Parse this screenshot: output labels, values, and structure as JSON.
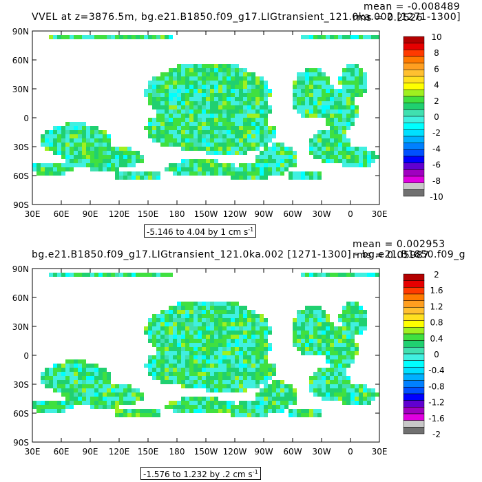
{
  "panels": [
    {
      "title": "VVEL at z=3876.5m, bg.e21.B1850.f09_g17.LIGtransient_121.0ka.002 [1271-1300]",
      "mean": "mean = -0.008489",
      "rms": "rms = 0.2526",
      "lat_labels": [
        "90N",
        "60N",
        "30N",
        "0",
        "30S",
        "60S",
        "90S"
      ],
      "lon_labels": [
        "30E",
        "60E",
        "90E",
        "120E",
        "150E",
        "180",
        "150W",
        "120W",
        "90W",
        "60W",
        "30W",
        "0",
        "30E"
      ],
      "range_text": "-5.146 to 4.04 by 1 cm s",
      "range_sup": "-1",
      "colorbar": {
        "labels": [
          "10",
          "8",
          "6",
          "4",
          "2",
          "0",
          "-2",
          "-4",
          "-6",
          "-8",
          "-10"
        ],
        "colors": [
          "#b30000",
          "#e60000",
          "#ff3a00",
          "#ff7a00",
          "#ff9f20",
          "#ffc030",
          "#ffe020",
          "#ffff00",
          "#a0f020",
          "#40e040",
          "#20d070",
          "#40e0b0",
          "#40f0e0",
          "#00ffff",
          "#00e0ff",
          "#00b0ff",
          "#0080ff",
          "#0050ff",
          "#0000ff",
          "#6000d0",
          "#a000c0",
          "#e000e0",
          "#c8c8c8",
          "#707070"
        ]
      }
    },
    {
      "title": "bg.e21.B1850.f09_g17.LIGtransient_121.0ka.002 [1271-1300] - bg.e21.B1850.f09_g",
      "mean": "mean = 0.002953",
      "rms": "rms = 0.05987",
      "lat_labels": [
        "90N",
        "60N",
        "30N",
        "0",
        "30S",
        "60S",
        "90S"
      ],
      "lon_labels": [
        "30E",
        "60E",
        "90E",
        "120E",
        "150E",
        "180",
        "150W",
        "120W",
        "90W",
        "60W",
        "30W",
        "0",
        "30E"
      ],
      "range_text": "-1.576 to 1.232 by .2 cm s",
      "range_sup": "-1",
      "colorbar": {
        "labels": [
          "2",
          "1.6",
          "1.2",
          "0.8",
          "0.4",
          "0",
          "-0.4",
          "-0.8",
          "-1.2",
          "-1.6",
          "-2"
        ],
        "colors": [
          "#b30000",
          "#e60000",
          "#ff3a00",
          "#ff7a00",
          "#ff9f20",
          "#ffc030",
          "#ffe020",
          "#ffff00",
          "#a0f020",
          "#40e040",
          "#20d070",
          "#40e0b0",
          "#40f0e0",
          "#00ffff",
          "#00e0ff",
          "#00b0ff",
          "#0080ff",
          "#0050ff",
          "#0000ff",
          "#6000d0",
          "#a000c0",
          "#e000e0",
          "#c8c8c8",
          "#707070"
        ]
      }
    }
  ]
}
